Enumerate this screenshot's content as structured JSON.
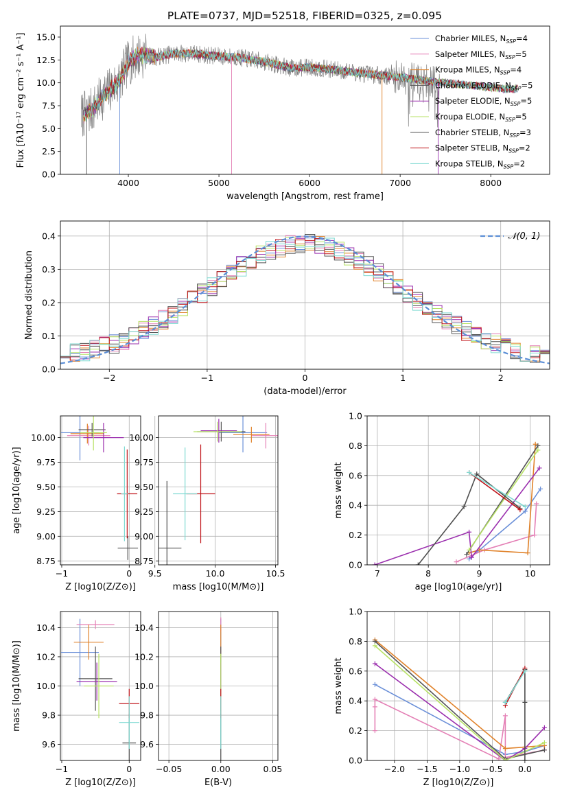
{
  "figure_title": "PLATE=0737, MJD=52518, FIBERID=0325, z=0.095",
  "colors": [
    "#6a8fd8",
    "#e47fb5",
    "#e0822a",
    "#555555",
    "#9b2fae",
    "#b7e264",
    "#4d4d4d",
    "#c0141a",
    "#7fdad2"
  ],
  "chart_data": [
    {
      "id": "spectrum",
      "type": "line",
      "title": "PLATE=0737, MJD=52518, FIBERID=0325, z=0.095",
      "xlabel": "wavelength [Angstrom, rest frame]",
      "ylabel": "Flux [fλ10⁻¹⁷ erg cm⁻² s⁻¹ A⁻¹]",
      "xlim": [
        3250,
        8650
      ],
      "ylim": [
        0,
        16.2
      ],
      "xticks": [
        4000,
        5000,
        6000,
        7000,
        8000
      ],
      "yticks": [
        0.0,
        2.5,
        5.0,
        7.5,
        10.0,
        12.5,
        15.0
      ],
      "legend_position": "top-right",
      "legend": [
        "Chabrier MILES, N_SSP=4",
        "Salpeter MILES, N_SSP=5",
        "Kroupa MILES, N_SSP=4",
        "Chabrier ELODIE, N_SSP=5",
        "Salpeter ELODIE, N_SSP=5",
        "Kroupa ELODIE, N_SSP=5",
        "Chabrier STELIB, N_SSP=3",
        "Salpeter STELIB, N_SSP=2",
        "Kroupa STELIB, N_SSP=2"
      ],
      "continuum_wavelength": [
        3500,
        3600,
        3700,
        3800,
        3900,
        4000,
        4100,
        4200,
        4300,
        4500,
        4700,
        4900,
        5000,
        5200,
        5500,
        5800,
        6000,
        6300,
        6600,
        7000,
        7300,
        7500,
        7800,
        8200,
        8400
      ],
      "continuum_flux": [
        6.5,
        7.0,
        8.3,
        9.3,
        10.2,
        12.2,
        13.0,
        13.0,
        12.8,
        13.2,
        13.2,
        13.0,
        12.9,
        12.8,
        12.3,
        11.6,
        11.7,
        11.4,
        11.0,
        10.6,
        10.2,
        10.0,
        9.7,
        9.3,
        9.4
      ]
    },
    {
      "id": "residuals",
      "type": "line",
      "xlabel": "(data-model)/error",
      "ylabel": "Normed distribution",
      "xlim": [
        -2.5,
        2.5
      ],
      "ylim": [
        0,
        0.445
      ],
      "xticks": [
        -2,
        -1,
        0,
        1,
        2
      ],
      "yticks": [
        0.0,
        0.1,
        0.2,
        0.3,
        0.4
      ],
      "grid": true,
      "legend_position": "top-right",
      "reference_curve": "N(0,1)",
      "legend": [
        "𝒩(0, 1)"
      ],
      "bin_width": 0.1
    },
    {
      "id": "age-vs-Z",
      "type": "scatter",
      "xlabel": "Z [log10(Z/Z⊙)]",
      "ylabel": "age  [log10(age/yr)]",
      "xlim": [
        -1.02,
        0.17
      ],
      "ylim": [
        8.71,
        10.22
      ],
      "xticks": [
        -1,
        0
      ],
      "yticks": [
        8.75,
        9.0,
        9.25,
        9.5,
        9.75,
        10.0
      ],
      "grid": true,
      "points": [
        {
          "x": -0.73,
          "xerr": 0.28,
          "y": 10.05,
          "yerr": 0.28
        },
        {
          "x": -0.6,
          "xerr": 0.32,
          "y": 10.02,
          "yerr": 0.1
        },
        {
          "x": -0.62,
          "xerr": 0.25,
          "y": 10.04,
          "yerr": 0.1
        },
        {
          "x": -0.55,
          "xerr": 0.2,
          "y": 10.08,
          "yerr": 0.07
        },
        {
          "x": -0.38,
          "xerr": 0.3,
          "y": 10.0,
          "yerr": 0.15
        },
        {
          "x": -0.53,
          "xerr": 0.2,
          "y": 10.05,
          "yerr": 0.18
        },
        {
          "x": -0.02,
          "xerr": 0.15,
          "y": 8.88,
          "yerr": 0.12
        },
        {
          "x": -0.03,
          "xerr": 0.15,
          "y": 9.43,
          "yerr": 0.45
        },
        {
          "x": -0.07,
          "xerr": 0.05,
          "y": 9.43,
          "yerr": 0.48
        }
      ]
    },
    {
      "id": "age-vs-mass",
      "type": "scatter",
      "xlabel": "mass [log10(M/M⊙)]",
      "ylabel": "",
      "xlim": [
        9.53,
        10.52
      ],
      "ylim": [
        8.71,
        10.22
      ],
      "xticks": [
        9.5,
        10.0,
        10.5
      ],
      "yticks": [
        8.75,
        9.0,
        9.25,
        9.5,
        9.75,
        10.0
      ],
      "grid": true,
      "points": [
        {
          "x": 10.23,
          "xerr": 0.2,
          "y": 10.05,
          "yerr": 0.2
        },
        {
          "x": 10.42,
          "xerr": 0.12,
          "y": 10.02,
          "yerr": 0.13
        },
        {
          "x": 10.3,
          "xerr": 0.15,
          "y": 10.03,
          "yerr": 0.08
        },
        {
          "x": 10.05,
          "xerr": 0.2,
          "y": 10.06,
          "yerr": 0.1
        },
        {
          "x": 10.03,
          "xerr": 0.15,
          "y": 10.07,
          "yerr": 0.12
        },
        {
          "x": 10.02,
          "xerr": 0.2,
          "y": 10.06,
          "yerr": 0.1
        },
        {
          "x": 9.6,
          "xerr": 0.12,
          "y": 8.88,
          "yerr": 0.68
        },
        {
          "x": 9.88,
          "xerr": 0.12,
          "y": 9.43,
          "yerr": 0.5
        },
        {
          "x": 9.75,
          "xerr": 0.1,
          "y": 9.43,
          "yerr": 0.47
        }
      ]
    },
    {
      "id": "massweight-vs-age",
      "type": "line",
      "xlabel": "age  [log10(age/yr)]",
      "ylabel": "mass weight",
      "xlim": [
        6.8,
        10.38
      ],
      "ylim": [
        0,
        1
      ],
      "xticks": [
        7,
        8,
        9,
        10
      ],
      "yticks": [
        0.0,
        0.2,
        0.4,
        0.6,
        0.8,
        1.0
      ],
      "grid": true,
      "series": [
        {
          "x": [
            8.8,
            9.9,
            10.2
          ],
          "y": [
            0.04,
            0.36,
            0.51
          ]
        },
        {
          "x": [
            8.55,
            9.1,
            10.08,
            10.12
          ],
          "y": [
            0.02,
            0.1,
            0.2,
            0.41
          ]
        },
        {
          "x": [
            8.8,
            9.0,
            9.95,
            10.1
          ],
          "y": [
            0.08,
            0.1,
            0.08,
            0.81
          ]
        },
        {
          "x": [
            8.75,
            10.15
          ],
          "y": [
            0.07,
            0.8
          ]
        },
        {
          "x": [
            6.95,
            8.8,
            8.85,
            10.18
          ],
          "y": [
            0.0,
            0.22,
            0.05,
            0.65
          ]
        },
        {
          "x": [
            8.8,
            10.15
          ],
          "y": [
            0.1,
            0.77
          ]
        },
        {
          "x": [
            7.8,
            8.7,
            8.95,
            9.8
          ],
          "y": [
            0.0,
            0.39,
            0.61,
            0.38
          ]
        },
        {
          "x": [
            8.8,
            9.8
          ],
          "y": [
            0.62,
            0.37
          ]
        },
        {
          "x": [
            8.8,
            9.9
          ],
          "y": [
            0.62,
            0.39
          ]
        }
      ]
    },
    {
      "id": "mass-vs-Z",
      "type": "scatter",
      "xlabel": "Z [log10(Z/Z⊙)]",
      "ylabel": "mass [log10(M/M⊙)]",
      "xlim": [
        -1.02,
        0.17
      ],
      "ylim": [
        9.49,
        10.51
      ],
      "xticks": [
        -1,
        0
      ],
      "yticks": [
        9.6,
        9.8,
        10.0,
        10.2,
        10.4
      ],
      "grid": true,
      "points": [
        {
          "x": -0.73,
          "xerr": 0.28,
          "y": 10.23,
          "yerr": 0.23
        },
        {
          "x": -0.5,
          "xerr": 0.28,
          "y": 10.42,
          "yerr": 0.03
        },
        {
          "x": -0.6,
          "xerr": 0.22,
          "y": 10.3,
          "yerr": 0.12
        },
        {
          "x": -0.5,
          "xerr": 0.25,
          "y": 10.05,
          "yerr": 0.22
        },
        {
          "x": -0.48,
          "xerr": 0.3,
          "y": 10.03,
          "yerr": 0.13
        },
        {
          "x": -0.45,
          "xerr": 0.22,
          "y": 10.0,
          "yerr": 0.22
        },
        {
          "x": 0.0,
          "xerr": 0.1,
          "y": 9.61,
          "yerr": 0.2
        },
        {
          "x": 0.0,
          "xerr": 0.15,
          "y": 9.88,
          "yerr": 0.1
        },
        {
          "x": 0.0,
          "xerr": 0.15,
          "y": 9.75,
          "yerr": 0.18
        }
      ]
    },
    {
      "id": "mass-vs-EBV",
      "type": "scatter",
      "xlabel": "E(B-V)",
      "ylabel": "",
      "xlim": [
        -0.06,
        0.055
      ],
      "ylim": [
        9.49,
        10.51
      ],
      "xticks": [
        -0.05,
        0.0,
        0.05
      ],
      "xticklabels": [
        "−0.05",
        "0.00",
        "0.05"
      ],
      "yticks": [
        9.6,
        9.8,
        10.0,
        10.2,
        10.4
      ],
      "grid": true,
      "points": [
        {
          "x": 0.0,
          "xerr": 0.0,
          "y": 10.23,
          "yerr": 0.23
        },
        {
          "x": 0.0,
          "xerr": 0.0,
          "y": 10.42,
          "yerr": 0.05
        },
        {
          "x": 0.0,
          "xerr": 0.0,
          "y": 10.3,
          "yerr": 0.12
        },
        {
          "x": 0.0,
          "xerr": 0.0,
          "y": 10.05,
          "yerr": 0.22
        },
        {
          "x": 0.0,
          "xerr": 0.0,
          "y": 10.03,
          "yerr": 0.13
        },
        {
          "x": 0.0,
          "xerr": 0.0,
          "y": 10.0,
          "yerr": 0.22
        },
        {
          "x": 0.0,
          "xerr": 0.0,
          "y": 9.61,
          "yerr": 0.2
        },
        {
          "x": 0.0,
          "xerr": 0.0,
          "y": 9.88,
          "yerr": 0.1
        },
        {
          "x": 0.0,
          "xerr": 0.0,
          "y": 9.75,
          "yerr": 0.18
        }
      ]
    },
    {
      "id": "massweight-vs-Z",
      "type": "line",
      "xlabel": "Z [log10(Z/Z⊙)]",
      "ylabel": "mass weight",
      "xlim": [
        -2.42,
        0.38
      ],
      "ylim": [
        0,
        1
      ],
      "xticks": [
        -2.0,
        -1.5,
        -1.0,
        -0.5,
        0.0
      ],
      "xticklabels": [
        "−2.0",
        "−1.5",
        "−1.0",
        "−0.5",
        "0.0"
      ],
      "yticks": [
        0.0,
        0.2,
        0.4,
        0.6,
        0.8,
        1.0
      ],
      "grid": true,
      "series": [
        {
          "x": [
            -2.3,
            -0.3,
            0.0,
            0.3
          ],
          "y": [
            0.51,
            0.04,
            0.06,
            0.1
          ]
        },
        {
          "x": [
            -2.3,
            -2.3,
            -2.3,
            -0.4,
            -0.3,
            -0.3,
            0.3,
            0.3
          ],
          "y": [
            0.2,
            0.36,
            0.41,
            0.01,
            0.3,
            0.02,
            0.07,
            0.1
          ]
        },
        {
          "x": [
            -2.3,
            -0.3,
            0.0,
            0.3
          ],
          "y": [
            0.81,
            0.08,
            0.09,
            0.1
          ]
        },
        {
          "x": [
            -2.3,
            -0.3,
            0.3
          ],
          "y": [
            0.8,
            0.01,
            0.07
          ]
        },
        {
          "x": [
            -2.3,
            -0.3,
            0.0,
            0.3
          ],
          "y": [
            0.65,
            0.0,
            0.08,
            0.22
          ]
        },
        {
          "x": [
            -2.3,
            -0.3,
            0.3
          ],
          "y": [
            0.77,
            0.0,
            0.12
          ]
        },
        {
          "x": [
            -0.3,
            0.0,
            0.0,
            0.0
          ],
          "y": [
            0.39,
            0.61,
            0.39,
            0.0
          ]
        },
        {
          "x": [
            -0.3,
            0.0
          ],
          "y": [
            0.37,
            0.62
          ]
        },
        {
          "x": [
            -0.3,
            0.0
          ],
          "y": [
            0.39,
            0.6
          ]
        }
      ]
    }
  ]
}
